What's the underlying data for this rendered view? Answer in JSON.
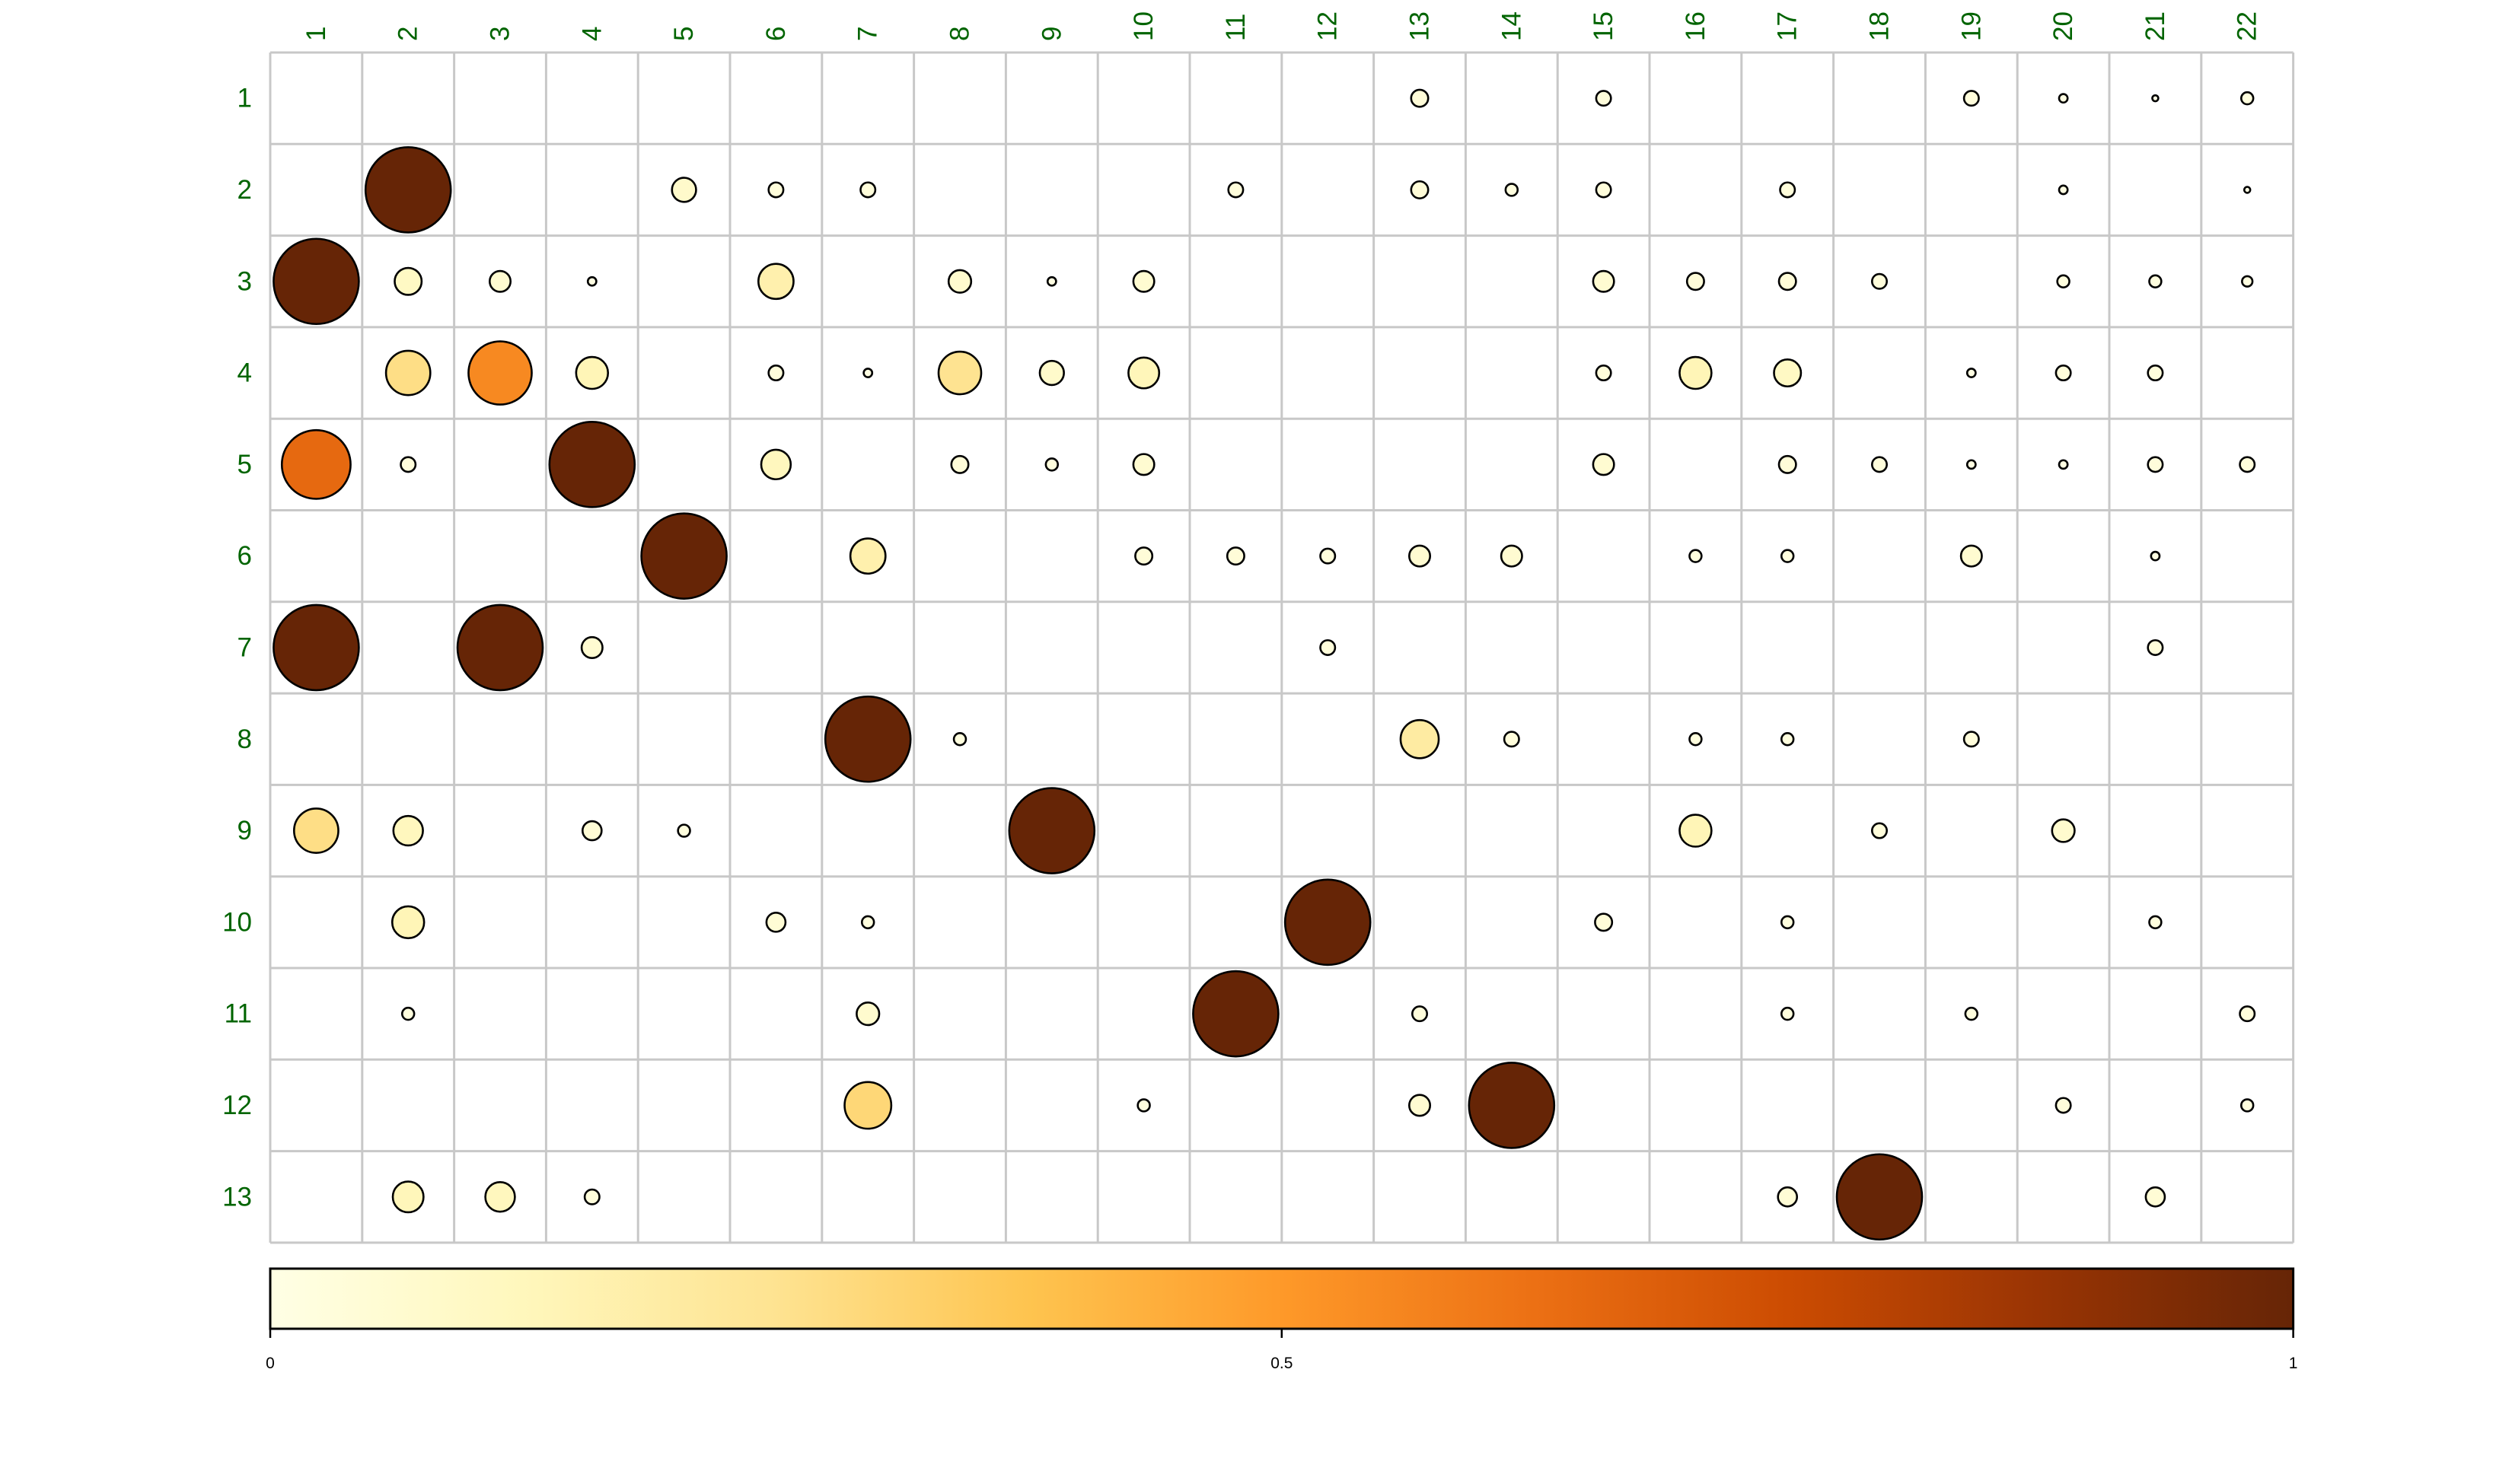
{
  "chart_data": {
    "type": "heatmap",
    "subtype": "bubble-matrix",
    "title": "",
    "xlabel": "",
    "ylabel": "",
    "rows": [
      "1",
      "2",
      "3",
      "4",
      "5",
      "6",
      "7",
      "8",
      "9",
      "10",
      "11",
      "12",
      "13"
    ],
    "columns": [
      "1",
      "2",
      "3",
      "4",
      "5",
      "6",
      "7",
      "8",
      "9",
      "10",
      "11",
      "12",
      "13",
      "14",
      "15",
      "16",
      "17",
      "18",
      "19",
      "20",
      "21",
      "22"
    ],
    "value_range": [
      0,
      1
    ],
    "size_and_color_encode_value": true,
    "grid": true,
    "colorbar": {
      "position": "bottom",
      "ticks": [
        0,
        0.5,
        1
      ],
      "tick_labels": [
        "0",
        "0.5",
        "1"
      ],
      "colors": [
        "#FFFFE5",
        "#FFF7BC",
        "#FEE391",
        "#FEC44F",
        "#FE9929",
        "#EC7014",
        "#CC4C02",
        "#993404",
        "#662506"
      ]
    },
    "cells": [
      {
        "row": "1",
        "col": "13",
        "value": 0.04
      },
      {
        "row": "1",
        "col": "15",
        "value": 0.03
      },
      {
        "row": "1",
        "col": "19",
        "value": 0.03
      },
      {
        "row": "1",
        "col": "20",
        "value": 0.01
      },
      {
        "row": "1",
        "col": "21",
        "value": 0.005
      },
      {
        "row": "1",
        "col": "22",
        "value": 0.02
      },
      {
        "row": "2",
        "col": "2",
        "value": 1.0
      },
      {
        "row": "2",
        "col": "5",
        "value": 0.08
      },
      {
        "row": "2",
        "col": "6",
        "value": 0.03
      },
      {
        "row": "2",
        "col": "7",
        "value": 0.03
      },
      {
        "row": "2",
        "col": "11",
        "value": 0.03
      },
      {
        "row": "2",
        "col": "13",
        "value": 0.04
      },
      {
        "row": "2",
        "col": "14",
        "value": 0.02
      },
      {
        "row": "2",
        "col": "15",
        "value": 0.03
      },
      {
        "row": "2",
        "col": "17",
        "value": 0.03
      },
      {
        "row": "2",
        "col": "20",
        "value": 0.01
      },
      {
        "row": "2",
        "col": "22",
        "value": 0.005
      },
      {
        "row": "3",
        "col": "1",
        "value": 1.0
      },
      {
        "row": "3",
        "col": "2",
        "value": 0.1
      },
      {
        "row": "3",
        "col": "3",
        "value": 0.06
      },
      {
        "row": "3",
        "col": "4",
        "value": 0.01
      },
      {
        "row": "3",
        "col": "6",
        "value": 0.17
      },
      {
        "row": "3",
        "col": "8",
        "value": 0.07
      },
      {
        "row": "3",
        "col": "9",
        "value": 0.01
      },
      {
        "row": "3",
        "col": "10",
        "value": 0.06
      },
      {
        "row": "3",
        "col": "15",
        "value": 0.06
      },
      {
        "row": "3",
        "col": "16",
        "value": 0.04
      },
      {
        "row": "3",
        "col": "17",
        "value": 0.04
      },
      {
        "row": "3",
        "col": "18",
        "value": 0.03
      },
      {
        "row": "3",
        "col": "20",
        "value": 0.02
      },
      {
        "row": "3",
        "col": "21",
        "value": 0.02
      },
      {
        "row": "3",
        "col": "22",
        "value": 0.015
      },
      {
        "row": "4",
        "col": "2",
        "value": 0.27
      },
      {
        "row": "4",
        "col": "3",
        "value": 0.55
      },
      {
        "row": "4",
        "col": "4",
        "value": 0.14
      },
      {
        "row": "4",
        "col": "6",
        "value": 0.03
      },
      {
        "row": "4",
        "col": "7",
        "value": 0.01
      },
      {
        "row": "4",
        "col": "8",
        "value": 0.25
      },
      {
        "row": "4",
        "col": "9",
        "value": 0.08
      },
      {
        "row": "4",
        "col": "10",
        "value": 0.13
      },
      {
        "row": "4",
        "col": "15",
        "value": 0.03
      },
      {
        "row": "4",
        "col": "16",
        "value": 0.14
      },
      {
        "row": "4",
        "col": "17",
        "value": 0.1
      },
      {
        "row": "4",
        "col": "19",
        "value": 0.01
      },
      {
        "row": "4",
        "col": "20",
        "value": 0.03
      },
      {
        "row": "4",
        "col": "21",
        "value": 0.03
      },
      {
        "row": "5",
        "col": "1",
        "value": 0.65
      },
      {
        "row": "5",
        "col": "2",
        "value": 0.03
      },
      {
        "row": "5",
        "col": "4",
        "value": 1.0
      },
      {
        "row": "5",
        "col": "6",
        "value": 0.12
      },
      {
        "row": "5",
        "col": "8",
        "value": 0.04
      },
      {
        "row": "5",
        "col": "9",
        "value": 0.02
      },
      {
        "row": "5",
        "col": "10",
        "value": 0.06
      },
      {
        "row": "5",
        "col": "15",
        "value": 0.06
      },
      {
        "row": "5",
        "col": "17",
        "value": 0.04
      },
      {
        "row": "5",
        "col": "18",
        "value": 0.03
      },
      {
        "row": "5",
        "col": "19",
        "value": 0.01
      },
      {
        "row": "5",
        "col": "20",
        "value": 0.01
      },
      {
        "row": "5",
        "col": "21",
        "value": 0.03
      },
      {
        "row": "5",
        "col": "22",
        "value": 0.03
      },
      {
        "row": "6",
        "col": "5",
        "value": 1.0
      },
      {
        "row": "6",
        "col": "7",
        "value": 0.17
      },
      {
        "row": "6",
        "col": "10",
        "value": 0.04
      },
      {
        "row": "6",
        "col": "11",
        "value": 0.04
      },
      {
        "row": "6",
        "col": "12",
        "value": 0.03
      },
      {
        "row": "6",
        "col": "13",
        "value": 0.06
      },
      {
        "row": "6",
        "col": "14",
        "value": 0.06
      },
      {
        "row": "6",
        "col": "16",
        "value": 0.02
      },
      {
        "row": "6",
        "col": "17",
        "value": 0.02
      },
      {
        "row": "6",
        "col": "19",
        "value": 0.06
      },
      {
        "row": "6",
        "col": "21",
        "value": 0.01
      },
      {
        "row": "7",
        "col": "1",
        "value": 1.0
      },
      {
        "row": "7",
        "col": "3",
        "value": 1.0
      },
      {
        "row": "7",
        "col": "4",
        "value": 0.06
      },
      {
        "row": "7",
        "col": "12",
        "value": 0.03
      },
      {
        "row": "7",
        "col": "21",
        "value": 0.03
      },
      {
        "row": "8",
        "col": "7",
        "value": 1.0
      },
      {
        "row": "8",
        "col": "8",
        "value": 0.02
      },
      {
        "row": "8",
        "col": "13",
        "value": 0.2
      },
      {
        "row": "8",
        "col": "14",
        "value": 0.03
      },
      {
        "row": "8",
        "col": "16",
        "value": 0.02
      },
      {
        "row": "8",
        "col": "17",
        "value": 0.02
      },
      {
        "row": "8",
        "col": "19",
        "value": 0.03
      },
      {
        "row": "9",
        "col": "1",
        "value": 0.27
      },
      {
        "row": "9",
        "col": "2",
        "value": 0.12
      },
      {
        "row": "9",
        "col": "4",
        "value": 0.05
      },
      {
        "row": "9",
        "col": "5",
        "value": 0.02
      },
      {
        "row": "9",
        "col": "9",
        "value": 1.0
      },
      {
        "row": "9",
        "col": "16",
        "value": 0.14
      },
      {
        "row": "9",
        "col": "18",
        "value": 0.03
      },
      {
        "row": "9",
        "col": "20",
        "value": 0.07
      },
      {
        "row": "10",
        "col": "2",
        "value": 0.14
      },
      {
        "row": "10",
        "col": "6",
        "value": 0.05
      },
      {
        "row": "10",
        "col": "7",
        "value": 0.02
      },
      {
        "row": "10",
        "col": "12",
        "value": 1.0
      },
      {
        "row": "10",
        "col": "15",
        "value": 0.04
      },
      {
        "row": "10",
        "col": "17",
        "value": 0.02
      },
      {
        "row": "10",
        "col": "21",
        "value": 0.02
      },
      {
        "row": "11",
        "col": "2",
        "value": 0.02
      },
      {
        "row": "11",
        "col": "7",
        "value": 0.07
      },
      {
        "row": "11",
        "col": "11",
        "value": 1.0
      },
      {
        "row": "11",
        "col": "13",
        "value": 0.03
      },
      {
        "row": "11",
        "col": "17",
        "value": 0.02
      },
      {
        "row": "11",
        "col": "19",
        "value": 0.02
      },
      {
        "row": "11",
        "col": "22",
        "value": 0.03
      },
      {
        "row": "12",
        "col": "7",
        "value": 0.3
      },
      {
        "row": "12",
        "col": "10",
        "value": 0.02
      },
      {
        "row": "12",
        "col": "13",
        "value": 0.06
      },
      {
        "row": "12",
        "col": "14",
        "value": 1.0
      },
      {
        "row": "12",
        "col": "20",
        "value": 0.03
      },
      {
        "row": "12",
        "col": "22",
        "value": 0.02
      },
      {
        "row": "13",
        "col": "2",
        "value": 0.13
      },
      {
        "row": "13",
        "col": "3",
        "value": 0.12
      },
      {
        "row": "13",
        "col": "4",
        "value": 0.03
      },
      {
        "row": "13",
        "col": "17",
        "value": 0.05
      },
      {
        "row": "13",
        "col": "18",
        "value": 1.0
      },
      {
        "row": "13",
        "col": "21",
        "value": 0.05
      }
    ]
  }
}
